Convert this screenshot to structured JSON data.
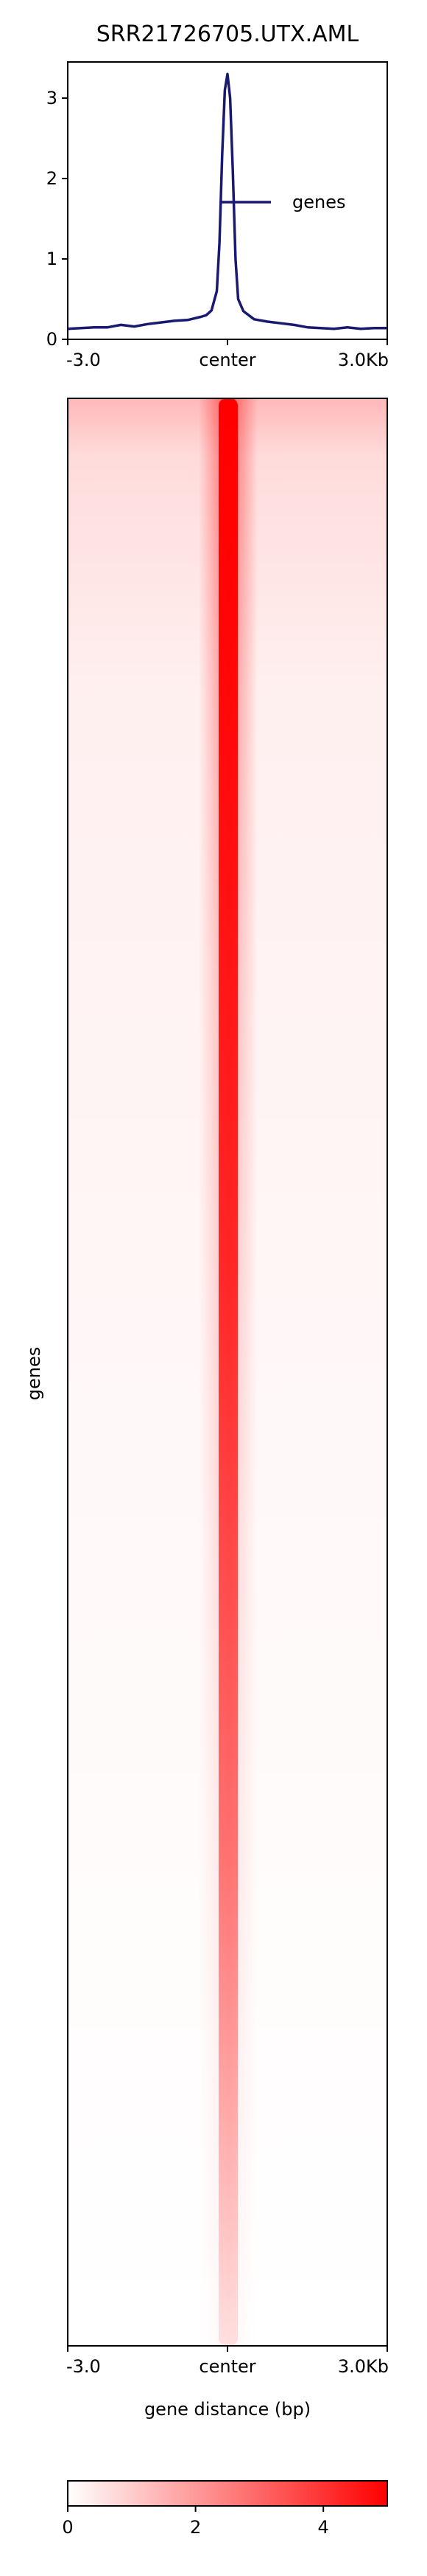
{
  "title": "SRR21726705.UTX.AML",
  "chart_data": [
    {
      "type": "line",
      "title": "SRR21726705.UTX.AML",
      "x": [
        -3000,
        -2750,
        -2500,
        -2250,
        -2000,
        -1750,
        -1500,
        -1250,
        -1000,
        -750,
        -500,
        -400,
        -300,
        -200,
        -150,
        -100,
        -50,
        0,
        50,
        100,
        150,
        200,
        300,
        400,
        500,
        750,
        1000,
        1250,
        1500,
        1750,
        2000,
        2250,
        2500,
        2750,
        3000
      ],
      "series": [
        {
          "name": "genes",
          "color": "#191970",
          "values": [
            0.13,
            0.14,
            0.15,
            0.15,
            0.18,
            0.16,
            0.19,
            0.21,
            0.23,
            0.24,
            0.28,
            0.3,
            0.36,
            0.6,
            1.2,
            2.3,
            3.1,
            3.3,
            3.0,
            2.1,
            1.0,
            0.5,
            0.35,
            0.3,
            0.25,
            0.22,
            0.2,
            0.18,
            0.15,
            0.14,
            0.13,
            0.15,
            0.13,
            0.14,
            0.14
          ]
        }
      ],
      "xticks": [
        {
          "value": -3000,
          "label": "-3.0"
        },
        {
          "value": 0,
          "label": "center"
        },
        {
          "value": 3000,
          "label": "3.0Kb"
        }
      ],
      "yticks": [
        0,
        1,
        2,
        3
      ],
      "ylim": [
        0,
        3.45
      ],
      "xlim": [
        -3000,
        3000
      ],
      "legend": {
        "label": "genes",
        "placement": "right"
      }
    },
    {
      "type": "heatmap",
      "ylabel": "genes",
      "xlabel": "gene distance (bp)",
      "xticks": [
        {
          "value": -3000,
          "label": "-3.0"
        },
        {
          "value": 0,
          "label": "center"
        },
        {
          "value": 3000,
          "label": "3.0Kb"
        }
      ],
      "colormap": [
        "#ffffff",
        "#ff0000"
      ],
      "colorbar": {
        "ticks": [
          0,
          2,
          4
        ],
        "vmin": 0,
        "vmax": 5
      }
    }
  ]
}
